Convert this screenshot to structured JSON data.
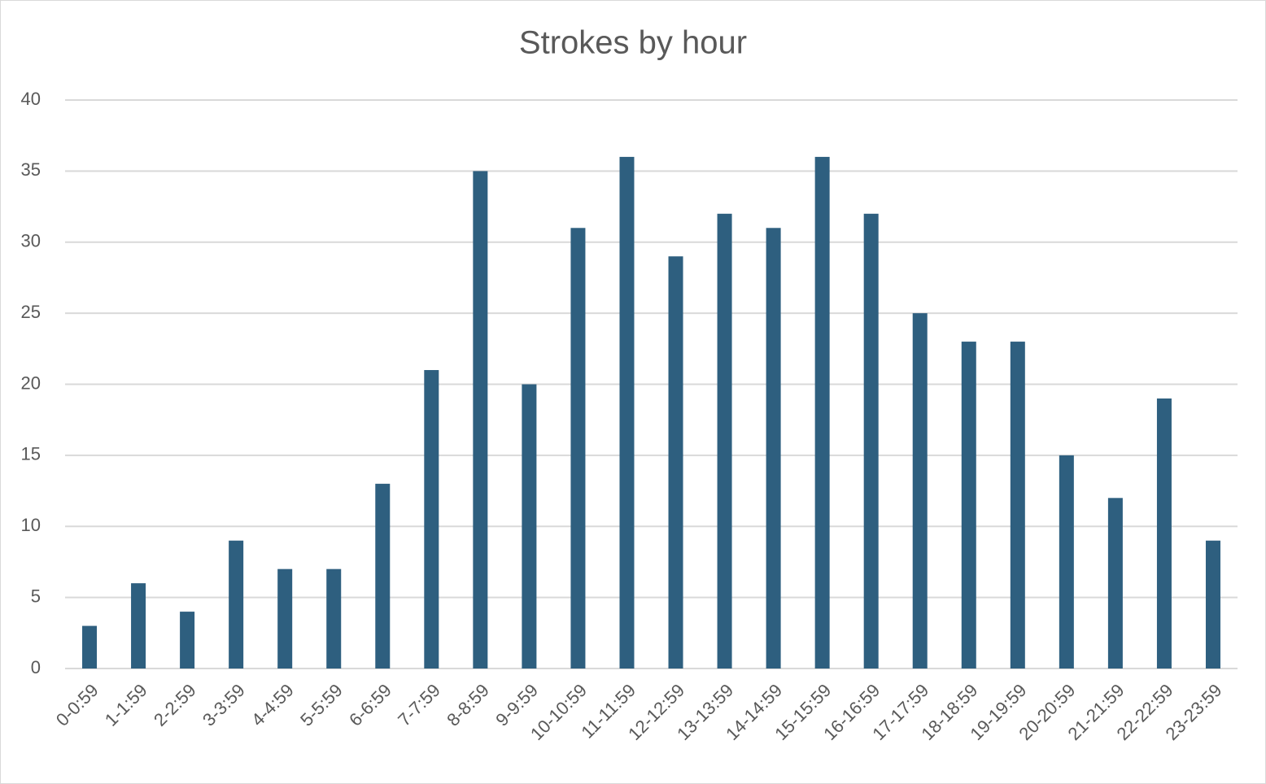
{
  "chart_data": {
    "type": "bar",
    "title": "Strokes by hour",
    "categories": [
      "0-0:59",
      "1-1:59",
      "2-2:59",
      "3-3:59",
      "4-4:59",
      "5-5:59",
      "6-6:59",
      "7-7:59",
      "8-8:59",
      "9-9:59",
      "10-10:59",
      "11-11:59",
      "12-12:59",
      "13-13:59",
      "14-14:59",
      "15-15:59",
      "16-16:59",
      "17-17:59",
      "18-18:59",
      "19-19:59",
      "20-20:59",
      "21-21:59",
      "22-22:59",
      "23-23:59"
    ],
    "values": [
      3,
      6,
      4,
      9,
      7,
      7,
      13,
      21,
      35,
      20,
      31,
      36,
      29,
      32,
      31,
      36,
      32,
      25,
      23,
      23,
      15,
      12,
      19,
      9
    ],
    "color": "#2e5f7f",
    "ylim": [
      0,
      40
    ],
    "yticks": [
      0,
      5,
      10,
      15,
      20,
      25,
      30,
      35,
      40
    ],
    "grid": true
  }
}
